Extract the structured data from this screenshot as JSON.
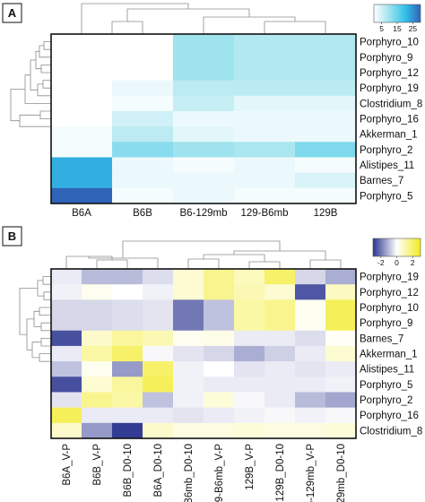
{
  "chart_data": [
    {
      "type": "heatmap",
      "panel_label": "A",
      "columns": [
        "B6A",
        "B6B",
        "B6-129mb",
        "129-B6mb",
        "129B"
      ],
      "rows": [
        "Porphyro_10",
        "Porphyro_9",
        "Porphyro_12",
        "Porphyro_19",
        "Clostridium_8",
        "Porphyro_16",
        "Akkerman_1",
        "Porphyro_2",
        "Alistipes_11",
        "Barnes_7",
        "Porphyro_5"
      ],
      "values": [
        [
          0,
          0,
          10,
          8,
          8
        ],
        [
          0,
          0,
          10,
          8,
          8
        ],
        [
          0,
          0,
          10,
          8,
          8
        ],
        [
          0,
          2,
          7,
          7,
          7
        ],
        [
          0,
          1,
          6,
          3,
          3
        ],
        [
          0,
          5,
          2,
          2,
          2
        ],
        [
          1,
          7,
          3,
          2,
          2
        ],
        [
          1,
          12,
          10,
          9,
          13
        ],
        [
          22,
          2,
          1,
          2,
          1
        ],
        [
          22,
          2,
          2,
          2,
          4
        ],
        [
          35,
          1,
          2,
          1,
          1
        ]
      ],
      "colorbar": {
        "ticks": [
          "5",
          "15",
          "25"
        ],
        "range": [
          0,
          30
        ],
        "colors": [
          "#ffffff",
          "#9fe3ee",
          "#33c2ea",
          "#2f63b8"
        ]
      }
    },
    {
      "type": "heatmap",
      "panel_label": "B",
      "columns": [
        "B6A_V-P",
        "B6B_V-P",
        "B6B_D0-10",
        "B6A_D0-10",
        "129-B6mb_D0-10",
        "129-B6mb_V-P",
        "129B_V-P",
        "129B_D0-10",
        "B6-129mb_V-P",
        "B6-129mb_D0-10"
      ],
      "rows": [
        "Porphyro_19",
        "Porphyro_12",
        "Porphyro_10",
        "Porphyro_9",
        "Barnes_7",
        "Akkerman_1",
        "Alistipes_11",
        "Porphyro_5",
        "Porphyro_2",
        "Porphyro_16",
        "Clostridium_8"
      ],
      "values": [
        [
          -0.3,
          -1.0,
          -1.0,
          -0.5,
          0.6,
          1.5,
          0.9,
          2.0,
          -0.6,
          -1.2
        ],
        [
          -0.2,
          0.2,
          0.0,
          -0.2,
          0.6,
          1.5,
          1.0,
          0.6,
          -2.5,
          0.8
        ],
        [
          -0.6,
          -0.6,
          -0.5,
          -0.4,
          -2.0,
          -0.9,
          1.2,
          1.5,
          0.2,
          2.2
        ],
        [
          -0.6,
          -0.6,
          -0.5,
          -0.4,
          -2.0,
          -0.9,
          1.2,
          1.5,
          0.2,
          2.2
        ],
        [
          -2.6,
          0.7,
          1.3,
          1.0,
          0.2,
          0.3,
          -0.3,
          -0.3,
          -0.5,
          0.1
        ],
        [
          -0.3,
          1.2,
          2.0,
          -0.1,
          -0.4,
          -0.6,
          -1.2,
          -0.7,
          -0.3,
          0.6
        ],
        [
          -0.9,
          0.2,
          -1.5,
          2.0,
          -0.2,
          0.0,
          -0.4,
          -0.3,
          -0.4,
          -0.3
        ],
        [
          -2.6,
          0.6,
          1.3,
          2.2,
          -0.2,
          -0.3,
          -0.3,
          -0.3,
          -0.3,
          -0.2
        ],
        [
          -0.4,
          1.5,
          1.2,
          -0.9,
          -0.2,
          0.5,
          -0.1,
          -0.3,
          -1.0,
          -1.3
        ],
        [
          2.2,
          -0.3,
          -0.3,
          -0.3,
          -0.4,
          -0.3,
          -0.2,
          -0.1,
          -0.2,
          -0.1
        ],
        [
          0.7,
          -1.5,
          -2.9,
          0.7,
          0.4,
          0.4,
          0.5,
          0.4,
          0.4,
          0.5
        ]
      ],
      "colorbar": {
        "ticks": [
          "-2",
          "0",
          "2"
        ],
        "range": [
          -3,
          3
        ],
        "colors": [
          "#2b3590",
          "#ffffff",
          "#f2ea1d"
        ]
      }
    }
  ]
}
